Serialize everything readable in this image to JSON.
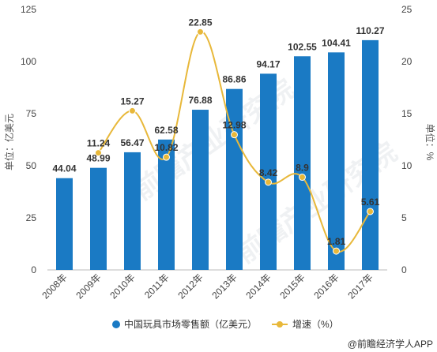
{
  "chart_data": {
    "type": "bar+line",
    "categories": [
      "2008年",
      "2009年",
      "2010年",
      "2011年",
      "2012年",
      "2013年",
      "2014年",
      "2015年",
      "2016年",
      "2017年"
    ],
    "series": [
      {
        "name": "中国玩具市场零售额（亿美元）",
        "type": "bar",
        "axis": "left",
        "values": [
          44.04,
          48.99,
          56.47,
          62.58,
          76.88,
          86.86,
          94.17,
          102.55,
          104.41,
          110.27
        ]
      },
      {
        "name": "增速（%）",
        "type": "line",
        "axis": "right",
        "values": [
          null,
          11.24,
          15.27,
          10.82,
          22.85,
          12.98,
          8.42,
          8.9,
          1.81,
          5.61
        ]
      }
    ],
    "ylabel_left": "单位：亿美元",
    "ylabel_right": "单位：%",
    "ylim_left": [
      0,
      125
    ],
    "yticks_left": [
      0,
      25,
      50,
      75,
      100,
      125
    ],
    "ylim_right": [
      0,
      25
    ],
    "yticks_right": [
      0,
      5,
      10,
      15,
      20,
      25
    ],
    "legend_position": "bottom",
    "grid": false,
    "colors": {
      "bar": "#1a7ac4",
      "line": "#e8b83a"
    }
  },
  "watermark": "前瞻产业研究院",
  "watermark2": "前瞻产业研究院",
  "source": "@前瞻经济学人APP"
}
